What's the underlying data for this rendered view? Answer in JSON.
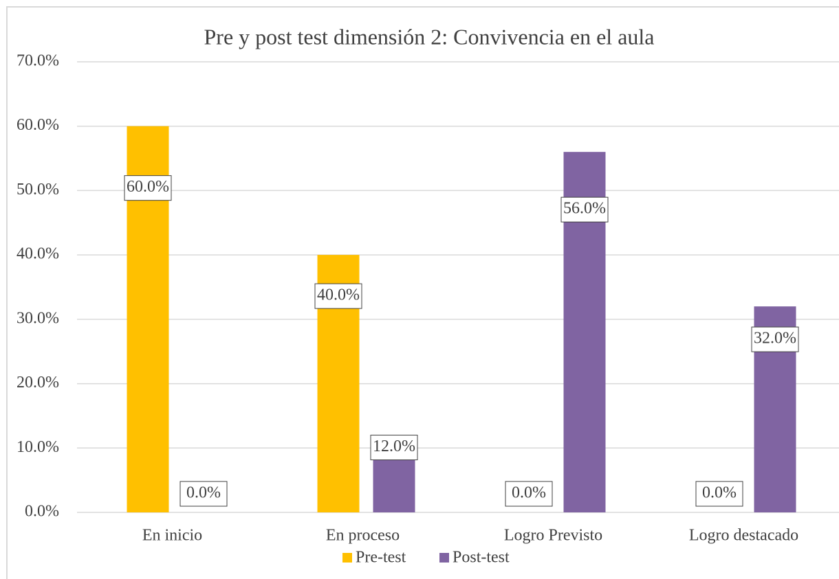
{
  "chart_data": {
    "type": "bar",
    "title": "Pre y post test dimensión 2: Convivencia en el aula",
    "categories": [
      "En inicio",
      "En proceso",
      "Logro Previsto",
      "Logro destacado"
    ],
    "series": [
      {
        "name": "Pre-test",
        "color": "#ffc000",
        "values": [
          60,
          40,
          0,
          0
        ],
        "value_labels": [
          "60.0%",
          "40.0%",
          "0.0%",
          "0.0%"
        ]
      },
      {
        "name": "Post-test",
        "color": "#8064a2",
        "values": [
          0,
          12,
          56,
          32
        ],
        "value_labels": [
          "0.0%",
          "12.0%",
          "56.0%",
          "32.0%"
        ]
      }
    ],
    "ylim": [
      0,
      70
    ],
    "yticks": [
      {
        "value": 0,
        "label": "0.0%"
      },
      {
        "value": 10,
        "label": "10.0%"
      },
      {
        "value": 20,
        "label": "20.0%"
      },
      {
        "value": 30,
        "label": "30.0%"
      },
      {
        "value": 40,
        "label": "40.0%"
      },
      {
        "value": 50,
        "label": "50.0%"
      },
      {
        "value": 60,
        "label": "60.0%"
      },
      {
        "value": 70,
        "label": "70.0%"
      }
    ],
    "grid": true,
    "legend": "bottom"
  }
}
